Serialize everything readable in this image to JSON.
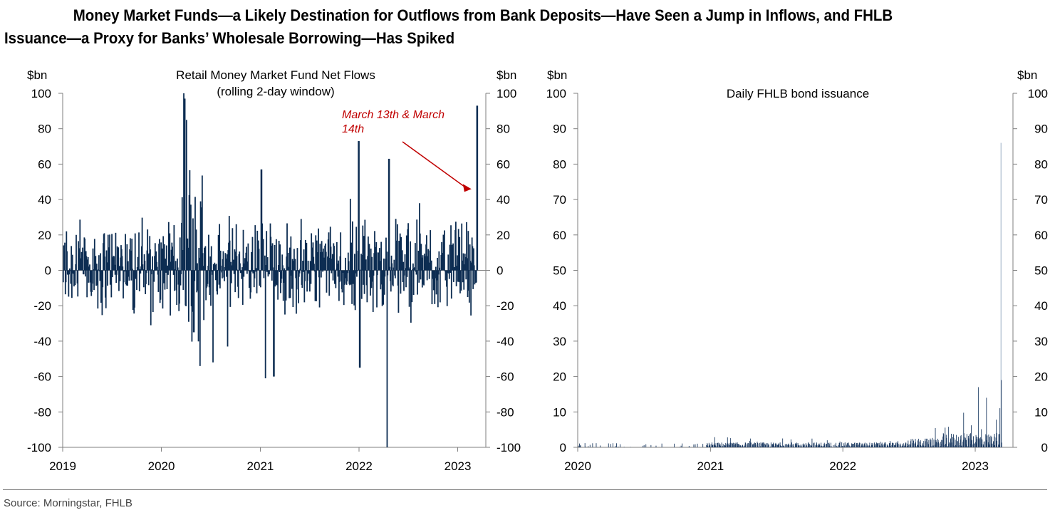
{
  "title": {
    "line1": "Money Market Funds—a Likely Destination for Outflows from Bank Deposits—Have Seen a Jump in Inflows, and FHLB",
    "line2": "Issuance—a Proxy for Banks’ Wholesale Borrowing—Has Spiked"
  },
  "source": "Source: Morningstar, FHLB",
  "colors": {
    "bars_left": "#0d2d52",
    "bars_right": "#1f3d64",
    "annotation": "#c00000",
    "axis": "#7f7f7f"
  },
  "chart_data": [
    {
      "type": "bar",
      "title": "Retail Money Market Fund Net Flows",
      "subtitle": "(rolling 2-day window)",
      "ylabel_left": "$bn",
      "ylabel_right": "$bn",
      "ylim": [
        -100,
        100
      ],
      "yticks": [
        100,
        80,
        60,
        40,
        20,
        0,
        -20,
        -40,
        -60,
        -80,
        -100
      ],
      "xlim": [
        "2019-01-01",
        "2023-04-15"
      ],
      "xticks": [
        "2019",
        "2020",
        "2021",
        "2022",
        "2023"
      ],
      "annotation": {
        "text_line1": "March 13th & March",
        "text_line2": "14th",
        "target_date": "2023-03-14",
        "target_value": 93
      },
      "notable_points": [
        {
          "date": "2020-03-25",
          "value": 100
        },
        {
          "date": "2020-03-27",
          "value": 97
        },
        {
          "date": "2020-04-03",
          "value": 85
        },
        {
          "date": "2020-04-30",
          "value": -35
        },
        {
          "date": "2020-07-10",
          "value": -52
        },
        {
          "date": "2021-01-20",
          "value": -61
        },
        {
          "date": "2021-02-20",
          "value": -60
        },
        {
          "date": "2021-01-05",
          "value": 57
        },
        {
          "date": "2021-12-31",
          "value": 73
        },
        {
          "date": "2022-01-04",
          "value": -55
        },
        {
          "date": "2022-04-15",
          "value": -100
        },
        {
          "date": "2022-04-22",
          "value": 63
        },
        {
          "date": "2023-03-14",
          "value": 93
        }
      ]
    },
    {
      "type": "bar",
      "title": "Daily FHLB bond issuance",
      "ylabel_left": "$bn",
      "ylabel_right": "$bn",
      "ylim": [
        0,
        100
      ],
      "yticks": [
        100,
        90,
        80,
        70,
        60,
        50,
        40,
        30,
        20,
        10,
        0
      ],
      "xlim": [
        "2020-01-01",
        "2023-04-15"
      ],
      "xticks": [
        "2020",
        "2021",
        "2022",
        "2023"
      ],
      "notable_points": [
        {
          "date": "2023-03-13",
          "value": 86
        },
        {
          "date": "2023-03-14",
          "value": 19
        },
        {
          "date": "2023-01-10",
          "value": 17
        },
        {
          "date": "2023-02-01",
          "value": 14
        }
      ]
    }
  ]
}
